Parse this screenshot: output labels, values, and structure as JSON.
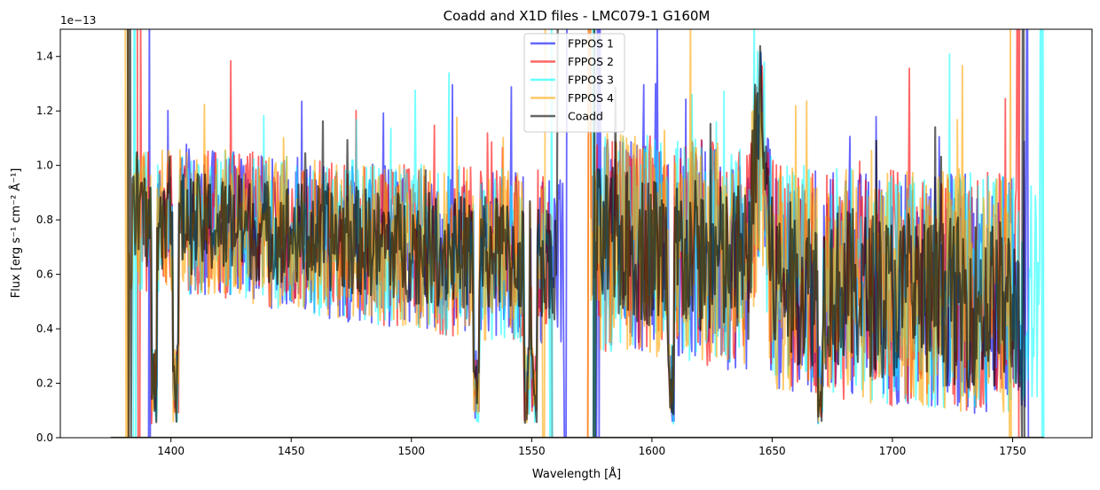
{
  "chart_data": {
    "type": "line",
    "title": "Coadd and X1D files - LMC079-1 G160M",
    "xlabel": "Wavelength [Å]",
    "ylabel": "Flux [erg s⁻¹ cm⁻² Å⁻¹]",
    "y_scale_label": "1e−13",
    "xlim": [
      1354,
      1783
    ],
    "ylim": [
      0,
      1.5
    ],
    "x_ticks": [
      1400,
      1450,
      1500,
      1550,
      1600,
      1650,
      1700,
      1750
    ],
    "x_tick_labels": [
      "1400",
      "1450",
      "1500",
      "1550",
      "1600",
      "1650",
      "1700",
      "1750"
    ],
    "y_ticks": [
      0,
      0.2,
      0.4,
      0.6,
      0.8,
      1.0,
      1.2,
      1.4
    ],
    "y_tick_labels": [
      "0.0",
      "0.2",
      "0.4",
      "0.6",
      "0.8",
      "1.0",
      "1.2",
      "1.4"
    ],
    "legend_position": "top-center",
    "series": [
      {
        "name": "FPPOS 1",
        "color": "#0000ff",
        "opacity": 0.6,
        "segments": [
          {
            "x_start": 1390,
            "x_end": 1565,
            "band_center": [
              [
                1390,
                0.8
              ],
              [
                1420,
                0.79
              ],
              [
                1450,
                0.74
              ],
              [
                1480,
                0.71
              ],
              [
                1510,
                0.69
              ],
              [
                1540,
                0.68
              ],
              [
                1565,
                0.66
              ]
            ],
            "band_halfwidth": [
              [
                1390,
                0.26
              ],
              [
                1565,
                0.33
              ]
            ]
          },
          {
            "x_start": 1577,
            "x_end": 1757,
            "band_center": [
              [
                1577,
                0.72
              ],
              [
                1610,
                0.7
              ],
              [
                1640,
                0.65
              ],
              [
                1645,
                1.1
              ],
              [
                1650,
                0.6
              ],
              [
                1700,
                0.55
              ],
              [
                1757,
                0.52
              ]
            ],
            "band_halfwidth": [
              [
                1577,
                0.4
              ],
              [
                1757,
                0.45
              ]
            ]
          }
        ]
      },
      {
        "name": "FPPOS 2",
        "color": "#ff0000",
        "opacity": 0.6,
        "segments": [
          {
            "x_start": 1386,
            "x_end": 1560,
            "band_center": [
              [
                1386,
                0.8
              ],
              [
                1420,
                0.79
              ],
              [
                1450,
                0.75
              ],
              [
                1480,
                0.72
              ],
              [
                1510,
                0.69
              ],
              [
                1540,
                0.67
              ],
              [
                1560,
                0.66
              ]
            ],
            "band_halfwidth": [
              [
                1386,
                0.26
              ],
              [
                1560,
                0.33
              ]
            ]
          },
          {
            "x_start": 1573,
            "x_end": 1753,
            "band_center": [
              [
                1573,
                0.72
              ],
              [
                1610,
                0.7
              ],
              [
                1640,
                0.65
              ],
              [
                1645,
                1.1
              ],
              [
                1650,
                0.6
              ],
              [
                1700,
                0.55
              ],
              [
                1753,
                0.52
              ]
            ],
            "band_halfwidth": [
              [
                1573,
                0.4
              ],
              [
                1753,
                0.45
              ]
            ]
          }
        ]
      },
      {
        "name": "FPPOS 3",
        "color": "#00ffff",
        "opacity": 0.55,
        "segments": [
          {
            "x_start": 1384,
            "x_end": 1559,
            "band_center": [
              [
                1384,
                0.8
              ],
              [
                1420,
                0.79
              ],
              [
                1450,
                0.75
              ],
              [
                1480,
                0.72
              ],
              [
                1510,
                0.69
              ],
              [
                1540,
                0.67
              ],
              [
                1559,
                0.66
              ]
            ],
            "band_halfwidth": [
              [
                1384,
                0.26
              ],
              [
                1559,
                0.33
              ]
            ]
          },
          {
            "x_start": 1575,
            "x_end": 1763,
            "band_center": [
              [
                1575,
                0.72
              ],
              [
                1610,
                0.7
              ],
              [
                1640,
                0.65
              ],
              [
                1645,
                1.1
              ],
              [
                1650,
                0.6
              ],
              [
                1700,
                0.55
              ],
              [
                1763,
                0.52
              ]
            ],
            "band_halfwidth": [
              [
                1575,
                0.4
              ],
              [
                1763,
                0.45
              ]
            ]
          }
        ]
      },
      {
        "name": "FPPOS 4",
        "color": "#ffa500",
        "opacity": 0.6,
        "segments": [
          {
            "x_start": 1381,
            "x_end": 1556,
            "band_center": [
              [
                1381,
                0.8
              ],
              [
                1420,
                0.79
              ],
              [
                1450,
                0.75
              ],
              [
                1480,
                0.72
              ],
              [
                1510,
                0.69
              ],
              [
                1540,
                0.67
              ],
              [
                1556,
                0.66
              ]
            ],
            "band_halfwidth": [
              [
                1381,
                0.26
              ],
              [
                1556,
                0.33
              ]
            ]
          },
          {
            "x_start": 1573,
            "x_end": 1750,
            "band_center": [
              [
                1573,
                0.72
              ],
              [
                1610,
                0.7
              ],
              [
                1640,
                0.65
              ],
              [
                1645,
                1.1
              ],
              [
                1650,
                0.6
              ],
              [
                1700,
                0.55
              ],
              [
                1750,
                0.52
              ]
            ],
            "band_halfwidth": [
              [
                1573,
                0.4
              ],
              [
                1750,
                0.45
              ]
            ]
          }
        ]
      },
      {
        "name": "Coadd",
        "color": "#000000",
        "opacity": 0.6,
        "segments": [
          {
            "x_start": 1382,
            "x_end": 1562,
            "band_center": [
              [
                1382,
                0.8
              ],
              [
                1420,
                0.78
              ],
              [
                1450,
                0.75
              ],
              [
                1480,
                0.72
              ],
              [
                1510,
                0.69
              ],
              [
                1540,
                0.67
              ],
              [
                1562,
                0.65
              ]
            ],
            "band_halfwidth": [
              [
                1382,
                0.18
              ],
              [
                1562,
                0.22
              ]
            ]
          },
          {
            "x_start": 1575,
            "x_end": 1755,
            "band_center": [
              [
                1575,
                0.72
              ],
              [
                1610,
                0.68
              ],
              [
                1640,
                0.62
              ],
              [
                1645,
                1.3
              ],
              [
                1650,
                0.58
              ],
              [
                1700,
                0.52
              ],
              [
                1755,
                0.48
              ]
            ],
            "band_halfwidth": [
              [
                1575,
                0.28
              ],
              [
                1755,
                0.32
              ]
            ]
          }
        ]
      }
    ],
    "absorption_features_x": [
      1393,
      1402,
      1527,
      1548,
      1551,
      1608,
      1670
    ],
    "emission_feature_x": 1643
  }
}
